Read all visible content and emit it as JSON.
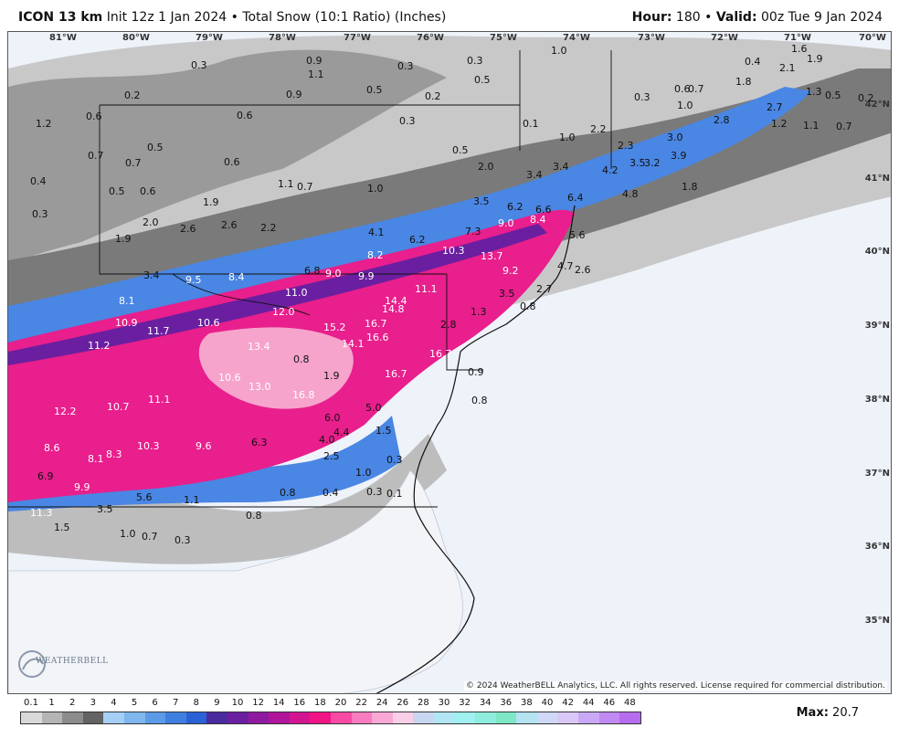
{
  "header": {
    "model": "ICON 13 km",
    "init": "Init 12z 1 Jan 2024",
    "separator": "•",
    "product": "Total Snow (10:1 Ratio) (Inches)",
    "hour_label": "Hour:",
    "hour_value": "180",
    "valid_label": "Valid:",
    "valid_value": "00z Tue 9 Jan 2024"
  },
  "map": {
    "copyright": "© 2024 WeatherBELL Analytics, LLC. All rights reserved. License required for commercial distribution.",
    "logo_text": "WEATHERBELL",
    "longitude_labels": [
      "81°W",
      "80°W",
      "79°W",
      "78°W",
      "77°W",
      "76°W",
      "75°W",
      "74°W",
      "73°W",
      "72°W",
      "71°W",
      "70°W"
    ],
    "latitude_labels": [
      "42°N",
      "41°N",
      "40°N",
      "39°N",
      "38°N",
      "37°N",
      "36°N",
      "35°N"
    ],
    "snow_values": [
      "1.6",
      "1.9",
      "0.4",
      "2.1",
      "0.9",
      "1.1",
      "0.3",
      "0.3",
      "0.3",
      "1.0",
      "0.5",
      "0.5",
      "0.2",
      "0.2",
      "0.9",
      "0.3",
      "0.6",
      "1.8",
      "1.3",
      "0.5",
      "0.2",
      "0.7",
      "1.2",
      "0.6",
      "0.1",
      "2.7",
      "1.2",
      "1.1",
      "0.7",
      "1.0",
      "0.3",
      "1.0",
      "2.2",
      "2.8",
      "3.0",
      "0.6",
      "0.5",
      "0.5",
      "2.3",
      "3.5",
      "0.7",
      "0.6",
      "2.0",
      "3.4",
      "3.4",
      "4.2",
      "3.2",
      "3.9",
      "0.4",
      "0.7",
      "1.1",
      "0.7",
      "1.0",
      "1.8",
      "0.5",
      "0.6",
      "1.9",
      "3.5",
      "6.2",
      "6.6",
      "6.4",
      "4.8",
      "0.3",
      "2.0",
      "2.6",
      "2.6",
      "2.2",
      "9.0",
      "8.4",
      "1.9",
      "4.1",
      "6.2",
      "7.3",
      "5.6",
      "8.2",
      "10.3",
      "3.4",
      "9.5",
      "8.4",
      "6.8",
      "9.0",
      "13.7",
      "9.2",
      "4.7",
      "2.6",
      "9.9",
      "11.0",
      "11.1",
      "3.5",
      "2.7",
      "8.1",
      "12.0",
      "14.4",
      "14.8",
      "1.3",
      "0.8",
      "10.9",
      "10.6",
      "15.2",
      "16.7",
      "11.7",
      "16.6",
      "2.8",
      "11.2",
      "13.4",
      "14.1",
      "0.8",
      "16.7",
      "1.9",
      "10.6",
      "16.7",
      "0.9",
      "13.0",
      "16.8",
      "11.1",
      "0.8",
      "10.7",
      "12.2",
      "5.0",
      "6.0",
      "4.4",
      "10.3",
      "9.6",
      "4.0",
      "1.5",
      "8.6",
      "8.3",
      "6.3",
      "8.1",
      "2.5",
      "1.0",
      "0.3",
      "6.9",
      "9.9",
      "0.8",
      "0.4",
      "0.3",
      "0.1",
      "5.6",
      "1.1",
      "11.3",
      "3.5",
      "0.8",
      "1.5",
      "1.0",
      "0.7",
      "0.3"
    ]
  },
  "legend": {
    "labels": [
      "0.1",
      "1",
      "2",
      "3",
      "4",
      "5",
      "6",
      "7",
      "8",
      "9",
      "10",
      "12",
      "14",
      "16",
      "18",
      "20",
      "22",
      "24",
      "26",
      "28",
      "30",
      "32",
      "34",
      "36",
      "38",
      "40",
      "42",
      "44",
      "46",
      "48"
    ],
    "colors": [
      "#d9d9d9",
      "#b4b4b4",
      "#8c8c8c",
      "#636363",
      "#a6cff5",
      "#7fb6ee",
      "#5b9ae6",
      "#3f7fe0",
      "#2a61d6",
      "#4b2a9e",
      "#6a1fa0",
      "#8f1aa0",
      "#b0159c",
      "#d41591",
      "#f01487",
      "#f64aa3",
      "#f87cbf",
      "#f9a8d5",
      "#f8cfe6",
      "#c9d6f0",
      "#b2e6f4",
      "#9ff0ef",
      "#8eeddc",
      "#7fe6c6",
      "#b4e3f2",
      "#cfd8f7",
      "#d9c8f7",
      "#c9a9f5",
      "#c189f2",
      "#b66cee"
    ],
    "max_label": "Max:",
    "max_value": "20.7"
  }
}
